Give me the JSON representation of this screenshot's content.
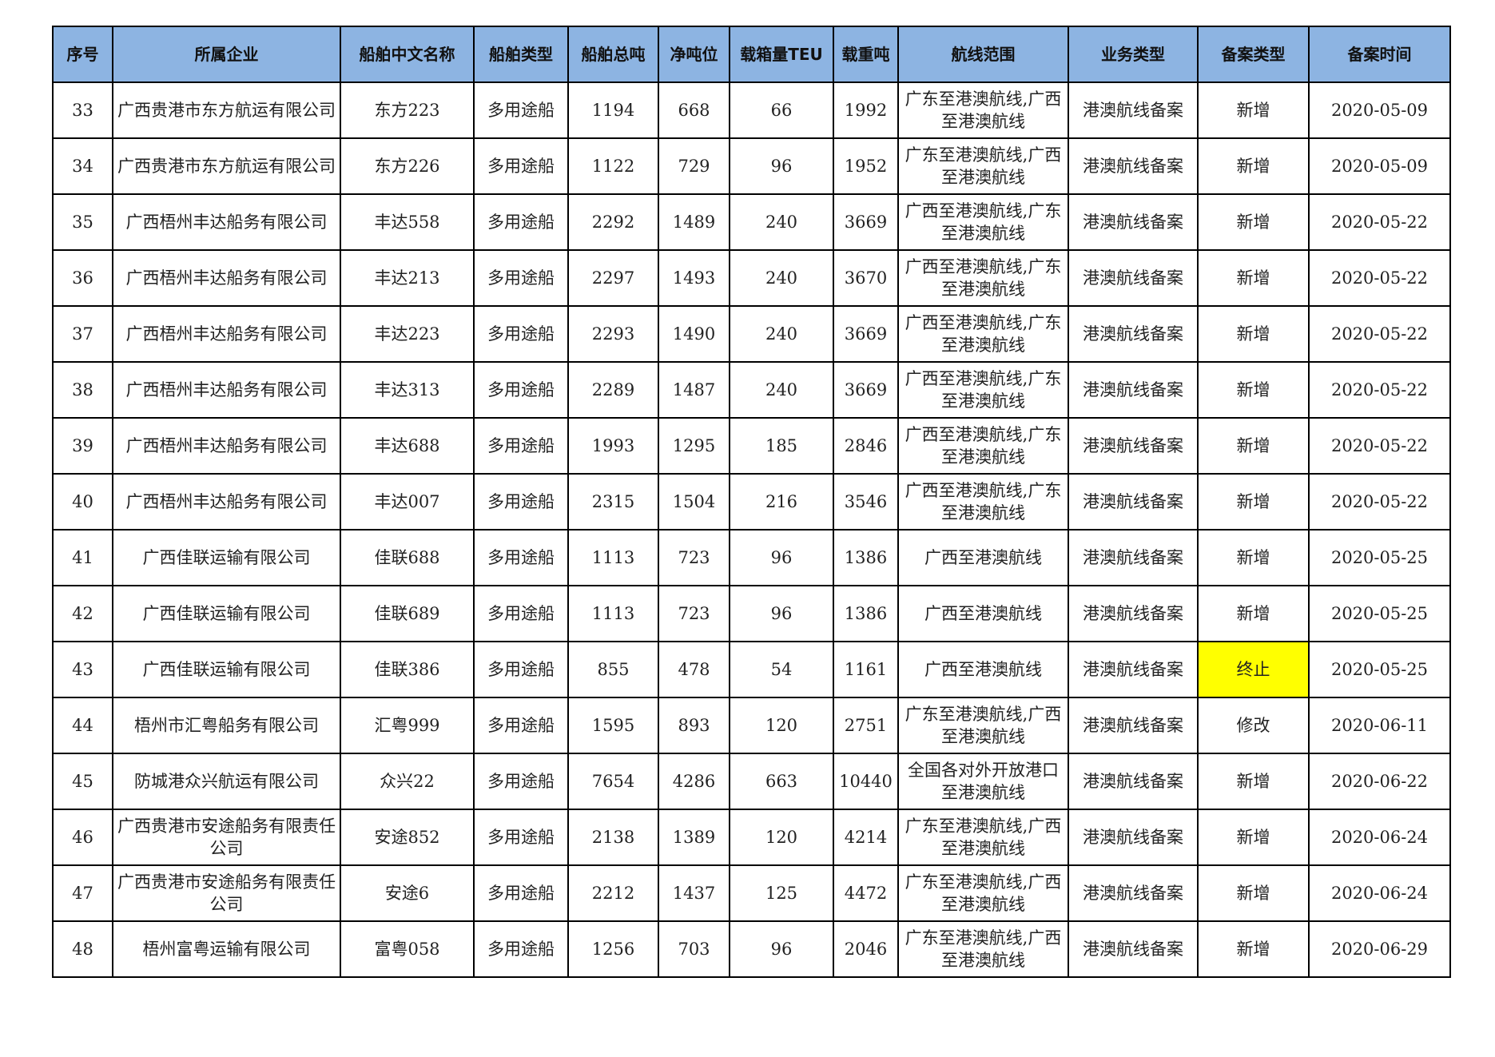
{
  "table": {
    "headers": [
      "序号",
      "所属企业",
      "船舶中文名称",
      "船舶类型",
      "船舶总吨",
      "净吨位",
      "载箱量TEU",
      "载重吨",
      "航线范围",
      "业务类型",
      "备案类型",
      "备案时间"
    ],
    "highlight_color": "#ffff00",
    "header_color": "#8db4e2",
    "rows": [
      [
        "33",
        "广西贵港市东方航运有限公司",
        "东方223",
        "多用途船",
        "1194",
        "668",
        "66",
        "1992",
        "广东至港澳航线,广西至港澳航线",
        "港澳航线备案",
        "新增",
        "2020-05-09"
      ],
      [
        "34",
        "广西贵港市东方航运有限公司",
        "东方226",
        "多用途船",
        "1122",
        "729",
        "96",
        "1952",
        "广东至港澳航线,广西至港澳航线",
        "港澳航线备案",
        "新增",
        "2020-05-09"
      ],
      [
        "35",
        "广西梧州丰达船务有限公司",
        "丰达558",
        "多用途船",
        "2292",
        "1489",
        "240",
        "3669",
        "广西至港澳航线,广东至港澳航线",
        "港澳航线备案",
        "新增",
        "2020-05-22"
      ],
      [
        "36",
        "广西梧州丰达船务有限公司",
        "丰达213",
        "多用途船",
        "2297",
        "1493",
        "240",
        "3670",
        "广西至港澳航线,广东至港澳航线",
        "港澳航线备案",
        "新增",
        "2020-05-22"
      ],
      [
        "37",
        "广西梧州丰达船务有限公司",
        "丰达223",
        "多用途船",
        "2293",
        "1490",
        "240",
        "3669",
        "广西至港澳航线,广东至港澳航线",
        "港澳航线备案",
        "新增",
        "2020-05-22"
      ],
      [
        "38",
        "广西梧州丰达船务有限公司",
        "丰达313",
        "多用途船",
        "2289",
        "1487",
        "240",
        "3669",
        "广西至港澳航线,广东至港澳航线",
        "港澳航线备案",
        "新增",
        "2020-05-22"
      ],
      [
        "39",
        "广西梧州丰达船务有限公司",
        "丰达688",
        "多用途船",
        "1993",
        "1295",
        "185",
        "2846",
        "广西至港澳航线,广东至港澳航线",
        "港澳航线备案",
        "新增",
        "2020-05-22"
      ],
      [
        "40",
        "广西梧州丰达船务有限公司",
        "丰达007",
        "多用途船",
        "2315",
        "1504",
        "216",
        "3546",
        "广西至港澳航线,广东至港澳航线",
        "港澳航线备案",
        "新增",
        "2020-05-22"
      ],
      [
        "41",
        "广西佳联运输有限公司",
        "佳联688",
        "多用途船",
        "1113",
        "723",
        "96",
        "1386",
        "广西至港澳航线",
        "港澳航线备案",
        "新增",
        "2020-05-25"
      ],
      [
        "42",
        "广西佳联运输有限公司",
        "佳联689",
        "多用途船",
        "1113",
        "723",
        "96",
        "1386",
        "广西至港澳航线",
        "港澳航线备案",
        "新增",
        "2020-05-25"
      ],
      [
        "43",
        "广西佳联运输有限公司",
        "佳联386",
        "多用途船",
        "855",
        "478",
        "54",
        "1161",
        "广西至港澳航线",
        "港澳航线备案",
        "终止",
        "2020-05-25"
      ],
      [
        "44",
        "梧州市汇粤船务有限公司",
        "汇粤999",
        "多用途船",
        "1595",
        "893",
        "120",
        "2751",
        "广东至港澳航线,广西至港澳航线",
        "港澳航线备案",
        "修改",
        "2020-06-11"
      ],
      [
        "45",
        "防城港众兴航运有限公司",
        "众兴22",
        "多用途船",
        "7654",
        "4286",
        "663",
        "10440",
        "全国各对外开放港口至港澳航线",
        "港澳航线备案",
        "新增",
        "2020-06-22"
      ],
      [
        "46",
        "广西贵港市安途船务有限责任公司",
        "安途852",
        "多用途船",
        "2138",
        "1389",
        "120",
        "4214",
        "广东至港澳航线,广西至港澳航线",
        "港澳航线备案",
        "新增",
        "2020-06-24"
      ],
      [
        "47",
        "广西贵港市安途船务有限责任公司",
        "安途6",
        "多用途船",
        "2212",
        "1437",
        "125",
        "4472",
        "广东至港澳航线,广西至港澳航线",
        "港澳航线备案",
        "新增",
        "2020-06-24"
      ],
      [
        "48",
        "梧州富粤运输有限公司",
        "富粤058",
        "多用途船",
        "1256",
        "703",
        "96",
        "2046",
        "广东至港澳航线,广西至港澳航线",
        "港澳航线备案",
        "新增",
        "2020-06-29"
      ]
    ],
    "highlighted_cells": [
      {
        "row": 10,
        "col": 10
      }
    ]
  }
}
